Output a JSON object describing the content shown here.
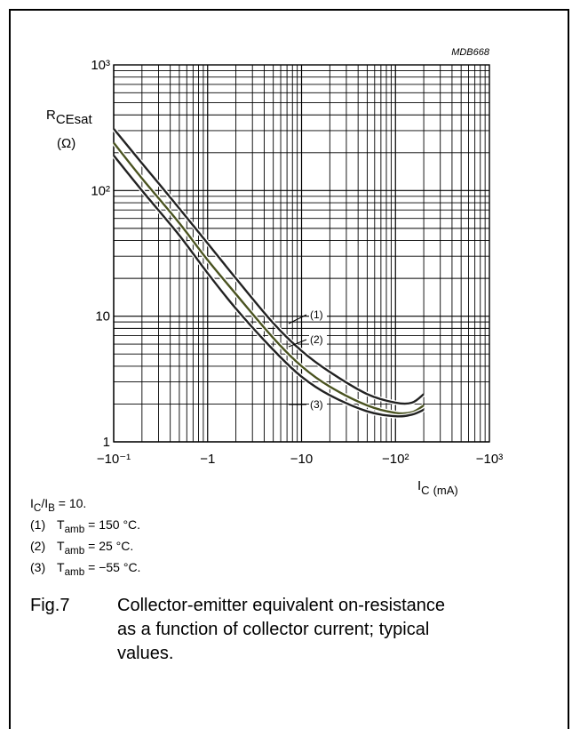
{
  "chart_data": {
    "type": "line",
    "code": "MDB668",
    "xaxis": {
      "scale": "log-negative",
      "range": [
        -0.1,
        -1000
      ],
      "ticks": [
        -0.1,
        -1,
        -10,
        -100,
        -1000
      ],
      "tick_labels": [
        "−10⁻¹",
        "−1",
        "−10",
        "−10²",
        "−10³"
      ],
      "label_main": "I",
      "label_sub": "C",
      "label_unit": "(mA)"
    },
    "yaxis": {
      "scale": "log",
      "range": [
        1,
        1000
      ],
      "ticks": [
        1,
        10,
        100,
        1000
      ],
      "tick_labels": [
        "1",
        "10",
        "10²",
        "10³"
      ],
      "label_main": "R",
      "label_sub": "CEsat",
      "label_unit": "(Ω)"
    },
    "grid": true,
    "series": [
      {
        "id": "(1)",
        "color": "#222222",
        "x": [
          -0.1,
          -0.2,
          -0.5,
          -1,
          -2,
          -5,
          -10,
          -20,
          -50,
          -100,
          -150,
          -200
        ],
        "y": [
          310,
          165,
          72,
          38,
          20,
          8.8,
          5.3,
          3.6,
          2.4,
          2.05,
          2.05,
          2.4
        ]
      },
      {
        "id": "(2)",
        "color": "#4a5320",
        "x": [
          -0.1,
          -0.2,
          -0.5,
          -1,
          -2,
          -5,
          -10,
          -20,
          -50,
          -100,
          -150,
          -200
        ],
        "y": [
          240,
          125,
          55,
          28,
          15,
          6.7,
          4.0,
          2.75,
          1.95,
          1.7,
          1.72,
          1.95
        ]
      },
      {
        "id": "(3)",
        "color": "#222222",
        "x": [
          -0.1,
          -0.2,
          -0.5,
          -1,
          -2,
          -5,
          -10,
          -20,
          -50,
          -100,
          -150,
          -200
        ],
        "y": [
          190,
          100,
          44,
          22,
          11.5,
          5.4,
          3.3,
          2.35,
          1.75,
          1.6,
          1.65,
          1.8
        ]
      }
    ],
    "annotations": [
      "(1)",
      "(2)",
      "(3)"
    ]
  },
  "notes": {
    "ratio": {
      "main": "I",
      "sub1": "C",
      "mid": "/I",
      "sub2": "B",
      "tail": " = 10."
    },
    "items": [
      {
        "num": "(1)",
        "main": "T",
        "sub": "amb",
        "value": " = 150 °C."
      },
      {
        "num": "(2)",
        "main": "T",
        "sub": "amb",
        "value": " = 25 °C."
      },
      {
        "num": "(3)",
        "main": "T",
        "sub": "amb",
        "value": " = −55 °C."
      }
    ]
  },
  "caption": {
    "label": "Fig.7",
    "text": "Collector-emitter equivalent on-resistance as a function of collector current; typical values."
  }
}
